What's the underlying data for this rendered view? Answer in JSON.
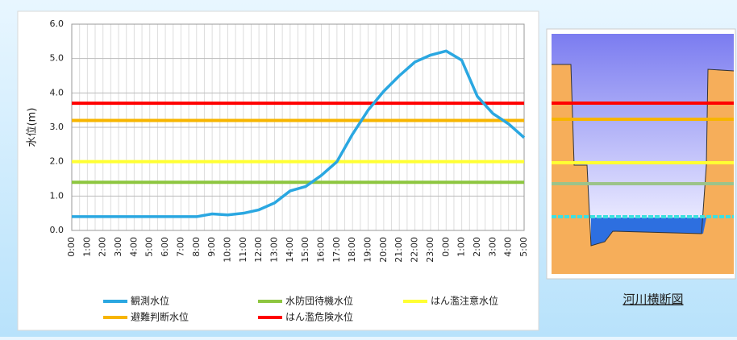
{
  "chart_data": {
    "type": "line",
    "y_label": "水位(m)",
    "categories": [
      "0:00",
      "1:00",
      "2:00",
      "3:00",
      "4:00",
      "5:00",
      "6:00",
      "7:00",
      "8:00",
      "9:00",
      "10:00",
      "11:00",
      "12:00",
      "13:00",
      "14:00",
      "15:00",
      "16:00",
      "17:00",
      "18:00",
      "19:00",
      "20:00",
      "21:00",
      "22:00",
      "23:00",
      "0:00",
      "1:00",
      "2:00",
      "3:00",
      "4:00",
      "5:00"
    ],
    "series": [
      {
        "name": "観測水位",
        "color": "#2aa7e1",
        "values": [
          0.4,
          0.4,
          0.4,
          0.4,
          0.4,
          0.4,
          0.4,
          0.4,
          0.4,
          0.48,
          0.45,
          0.5,
          0.6,
          0.8,
          1.15,
          1.28,
          1.6,
          2.0,
          2.8,
          3.5,
          4.05,
          4.5,
          4.9,
          5.1,
          5.22,
          4.95,
          3.9,
          3.4,
          3.1,
          2.7
        ]
      }
    ],
    "reference_lines": [
      {
        "name": "水防団待機水位",
        "color": "#8dc63f",
        "value": 1.4
      },
      {
        "name": "はん濫注意水位",
        "color": "#ffff33",
        "value": 2.0
      },
      {
        "name": "避難判断水位",
        "color": "#f7b500",
        "value": 3.2
      },
      {
        "name": "はん濫危険水位",
        "color": "#ff0000",
        "value": 3.7
      }
    ],
    "ylim": [
      0,
      6
    ],
    "yticks": [
      {
        "value": 0,
        "label": "0.0"
      },
      {
        "value": 1,
        "label": "1.0"
      },
      {
        "value": 2,
        "label": "2.0"
      },
      {
        "value": 3,
        "label": "3.0"
      },
      {
        "value": 4,
        "label": "4.0"
      },
      {
        "value": 5,
        "label": "5.0"
      },
      {
        "value": 6,
        "label": "6.0"
      }
    ],
    "grid": true,
    "cross_section_label": "河川横断図"
  }
}
